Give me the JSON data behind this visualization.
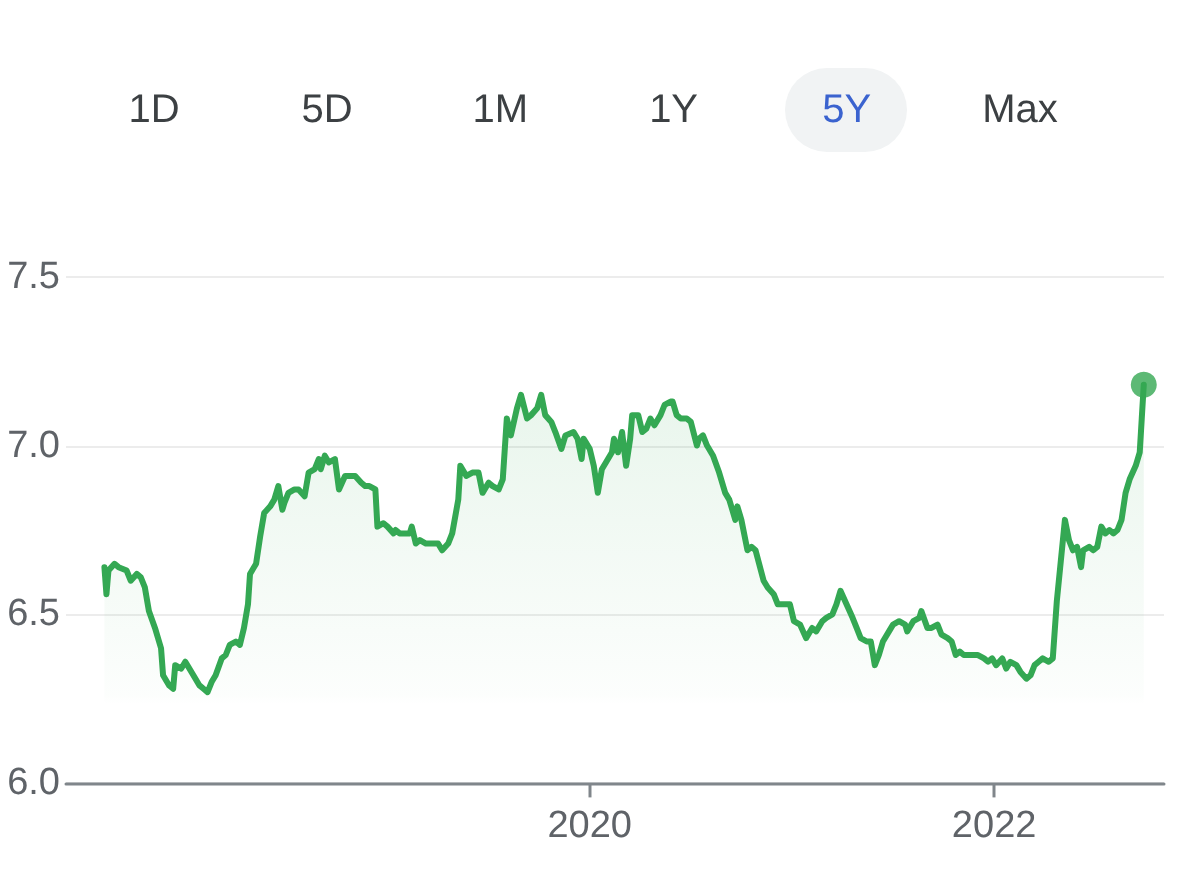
{
  "chart_data": {
    "type": "area",
    "annotations": [
      "1D",
      "5D",
      "1M",
      "1Y",
      "5Y",
      "Max"
    ],
    "xlim": [
      2017.41,
      2022.84
    ],
    "xticks": [
      2020,
      2022
    ],
    "ylim": [
      6,
      7.5
    ],
    "yticks": [
      {
        "value": 6,
        "label": "6.0"
      },
      6.5,
      {
        "value": 7,
        "label": "7.0"
      },
      7.5
    ],
    "grid": "y",
    "series": [
      {
        "color": "#34a853",
        "x": [
          2017.6,
          2017.61,
          2017.62,
          2017.65,
          2017.67,
          2017.71,
          2017.73,
          2017.76,
          2017.78,
          2017.8,
          2017.82,
          2017.85,
          2017.88,
          2017.89,
          2017.92,
          2017.94,
          2017.95,
          2017.98,
          2018.0,
          2018.02,
          2018.04,
          2018.07,
          2018.09,
          2018.11,
          2018.13,
          2018.15,
          2018.18,
          2018.2,
          2018.22,
          2018.25,
          2018.27,
          2018.29,
          2018.31,
          2018.32,
          2018.35,
          2018.37,
          2018.39,
          2018.42,
          2018.44,
          2018.46,
          2018.48,
          2018.49,
          2018.51,
          2018.54,
          2018.56,
          2018.59,
          2018.61,
          2018.64,
          2018.66,
          2018.67,
          2018.69,
          2018.71,
          2018.74,
          2018.76,
          2018.79,
          2018.82,
          2018.84,
          2018.87,
          2018.89,
          2018.91,
          2018.94,
          2018.95,
          2018.98,
          2019.0,
          2019.03,
          2019.04,
          2019.06,
          2019.08,
          2019.11,
          2019.12,
          2019.14,
          2019.16,
          2019.19,
          2019.22,
          2019.25,
          2019.27,
          2019.3,
          2019.32,
          2019.35,
          2019.36,
          2019.39,
          2019.42,
          2019.45,
          2019.47,
          2019.5,
          2019.52,
          2019.55,
          2019.57,
          2019.59,
          2019.61,
          2019.64,
          2019.66,
          2019.69,
          2019.71,
          2019.74,
          2019.76,
          2019.78,
          2019.81,
          2019.83,
          2019.86,
          2019.88,
          2019.92,
          2019.94,
          2019.96,
          2019.97,
          2020.0,
          2020.02,
          2020.04,
          2020.06,
          2020.08,
          2020.11,
          2020.12,
          2020.14,
          2020.16,
          2020.18,
          2020.2,
          2020.21,
          2020.24,
          2020.26,
          2020.28,
          2020.3,
          2020.32,
          2020.35,
          2020.37,
          2020.4,
          2020.41,
          2020.43,
          2020.45,
          2020.48,
          2020.5,
          2020.53,
          2020.54,
          2020.56,
          2020.58,
          2020.61,
          2020.64,
          2020.67,
          2020.69,
          2020.72,
          2020.73,
          2020.75,
          2020.78,
          2020.8,
          2020.82,
          2020.86,
          2020.88,
          2020.91,
          2020.93,
          2020.96,
          2020.99,
          2021.01,
          2021.04,
          2021.07,
          2021.1,
          2021.12,
          2021.15,
          2021.17,
          2021.2,
          2021.22,
          2021.24,
          2021.27,
          2021.3,
          2021.32,
          2021.34,
          2021.37,
          2021.39,
          2021.41,
          2021.43,
          2021.45,
          2021.48,
          2021.5,
          2021.53,
          2021.56,
          2021.57,
          2021.6,
          2021.63,
          2021.64,
          2021.67,
          2021.69,
          2021.72,
          2021.74,
          2021.77,
          2021.79,
          2021.81,
          2021.83,
          2021.85,
          2021.87,
          2021.9,
          2021.92,
          2021.95,
          2021.97,
          2021.99,
          2022.01,
          2022.04,
          2022.06,
          2022.08,
          2022.11,
          2022.13,
          2022.16,
          2022.18,
          2022.2,
          2022.22,
          2022.24,
          2022.27,
          2022.29,
          2022.31,
          2022.33,
          2022.35,
          2022.37,
          2022.39,
          2022.41,
          2022.43,
          2022.44,
          2022.47,
          2022.49,
          2022.51,
          2022.53,
          2022.55,
          2022.57,
          2022.59,
          2022.61,
          2022.63,
          2022.65,
          2022.67,
          2022.7,
          2022.72,
          2022.73,
          2022.74
        ],
        "values": [
          6.64,
          6.56,
          6.63,
          6.65,
          6.64,
          6.63,
          6.6,
          6.62,
          6.61,
          6.58,
          6.51,
          6.46,
          6.4,
          6.32,
          6.29,
          6.28,
          6.35,
          6.34,
          6.36,
          6.34,
          6.32,
          6.29,
          6.28,
          6.27,
          6.3,
          6.32,
          6.37,
          6.38,
          6.41,
          6.42,
          6.41,
          6.46,
          6.53,
          6.62,
          6.65,
          6.73,
          6.8,
          6.82,
          6.84,
          6.88,
          6.81,
          6.83,
          6.86,
          6.87,
          6.87,
          6.85,
          6.92,
          6.93,
          6.96,
          6.93,
          6.97,
          6.95,
          6.96,
          6.87,
          6.91,
          6.91,
          6.91,
          6.89,
          6.88,
          6.88,
          6.87,
          6.76,
          6.77,
          6.76,
          6.74,
          6.75,
          6.74,
          6.74,
          6.74,
          6.76,
          6.71,
          6.72,
          6.71,
          6.71,
          6.71,
          6.69,
          6.71,
          6.74,
          6.84,
          6.94,
          6.91,
          6.92,
          6.92,
          6.86,
          6.89,
          6.88,
          6.87,
          6.9,
          7.08,
          7.03,
          7.11,
          7.15,
          7.08,
          7.09,
          7.11,
          7.15,
          7.09,
          7.07,
          7.04,
          6.99,
          7.03,
          7.04,
          7.02,
          6.96,
          7.02,
          6.99,
          6.94,
          6.86,
          6.93,
          6.95,
          6.98,
          7.02,
          6.98,
          7.04,
          6.94,
          7.02,
          7.09,
          7.09,
          7.04,
          7.05,
          7.08,
          7.06,
          7.09,
          7.12,
          7.13,
          7.13,
          7.09,
          7.08,
          7.08,
          7.07,
          7.0,
          7.02,
          7.03,
          7.0,
          6.97,
          6.92,
          6.86,
          6.84,
          6.78,
          6.82,
          6.78,
          6.69,
          6.7,
          6.69,
          6.6,
          6.58,
          6.56,
          6.53,
          6.53,
          6.53,
          6.48,
          6.47,
          6.43,
          6.46,
          6.45,
          6.48,
          6.49,
          6.5,
          6.53,
          6.57,
          6.53,
          6.49,
          6.46,
          6.43,
          6.42,
          6.42,
          6.35,
          6.38,
          6.42,
          6.45,
          6.47,
          6.48,
          6.47,
          6.45,
          6.48,
          6.49,
          6.51,
          6.46,
          6.46,
          6.47,
          6.44,
          6.43,
          6.42,
          6.38,
          6.39,
          6.38,
          6.38,
          6.38,
          6.38,
          6.37,
          6.36,
          6.37,
          6.35,
          6.37,
          6.34,
          6.36,
          6.35,
          6.33,
          6.31,
          6.32,
          6.35,
          6.36,
          6.37,
          6.36,
          6.37,
          6.54,
          6.66,
          6.78,
          6.72,
          6.69,
          6.7,
          6.64,
          6.69,
          6.7,
          6.69,
          6.7,
          6.76,
          6.74,
          6.75,
          6.74,
          6.75,
          6.78,
          6.86,
          6.9,
          6.94,
          6.98,
          7.08,
          7.18
        ]
      },
      {
        "type": "scatter",
        "color": "#34a853",
        "marker": "circle",
        "x": [
          2022.74
        ],
        "values": [
          7.18
        ]
      }
    ]
  }
}
